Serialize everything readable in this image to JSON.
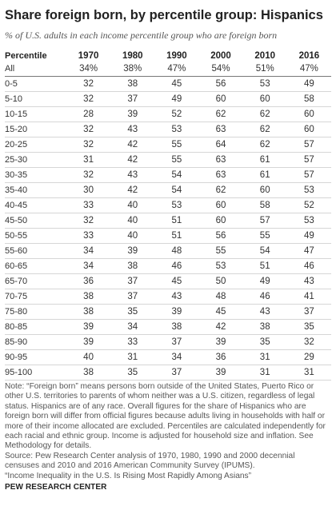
{
  "title": "Share foreign born, by percentile group: Hispanics",
  "subtitle": "% of U.S. adults in each income percentile group who are foreign born",
  "table": {
    "header": [
      "Percentile",
      "1970",
      "1980",
      "1990",
      "2000",
      "2010",
      "2016"
    ],
    "all_row": [
      "All",
      "34%",
      "38%",
      "47%",
      "54%",
      "51%",
      "47%"
    ],
    "rows": [
      [
        "0-5",
        "32",
        "38",
        "45",
        "56",
        "53",
        "49"
      ],
      [
        "5-10",
        "32",
        "37",
        "49",
        "60",
        "60",
        "58"
      ],
      [
        "10-15",
        "28",
        "39",
        "52",
        "62",
        "62",
        "60"
      ],
      [
        "15-20",
        "32",
        "43",
        "53",
        "63",
        "62",
        "60"
      ],
      [
        "20-25",
        "32",
        "42",
        "55",
        "64",
        "62",
        "57"
      ],
      [
        "25-30",
        "31",
        "42",
        "55",
        "63",
        "61",
        "57"
      ],
      [
        "30-35",
        "32",
        "43",
        "54",
        "63",
        "61",
        "57"
      ],
      [
        "35-40",
        "30",
        "42",
        "54",
        "62",
        "60",
        "53"
      ],
      [
        "40-45",
        "33",
        "40",
        "53",
        "60",
        "58",
        "52"
      ],
      [
        "45-50",
        "32",
        "40",
        "51",
        "60",
        "57",
        "53"
      ],
      [
        "50-55",
        "33",
        "40",
        "51",
        "56",
        "55",
        "49"
      ],
      [
        "55-60",
        "34",
        "39",
        "48",
        "55",
        "54",
        "47"
      ],
      [
        "60-65",
        "34",
        "38",
        "46",
        "53",
        "51",
        "46"
      ],
      [
        "65-70",
        "36",
        "37",
        "45",
        "50",
        "49",
        "43"
      ],
      [
        "70-75",
        "38",
        "37",
        "43",
        "48",
        "46",
        "41"
      ],
      [
        "75-80",
        "38",
        "35",
        "39",
        "45",
        "43",
        "37"
      ],
      [
        "80-85",
        "39",
        "34",
        "38",
        "42",
        "38",
        "35"
      ],
      [
        "85-90",
        "39",
        "33",
        "37",
        "39",
        "35",
        "32"
      ],
      [
        "90-95",
        "40",
        "31",
        "34",
        "36",
        "31",
        "29"
      ],
      [
        "95-100",
        "38",
        "35",
        "37",
        "39",
        "31",
        "31"
      ]
    ]
  },
  "notes": {
    "note": "Note: “Foreign born” means persons born outside of the United States, Puerto Rico or other U.S. territories to parents of whom neither was a U.S. citizen, regardless of legal status. Hispanics are of any race. Overall figures for the share of Hispanics who are foreign born will differ from official figures because adults living in households with half or more of their income allocated are excluded. Percentiles are calculated independently for each racial and ethnic group. Income is adjusted for household size and inflation. See Methodology for details.",
    "source": "Source: Pew Research Center analysis of 1970, 1980, 1990 and 2000 decennial censuses and 2010 and 2016 American Community Survey (IPUMS).",
    "report": "“Income Inequality in the U.S. Is Rising Most Rapidly Among Asians”"
  },
  "footer": "PEW RESEARCH CENTER"
}
